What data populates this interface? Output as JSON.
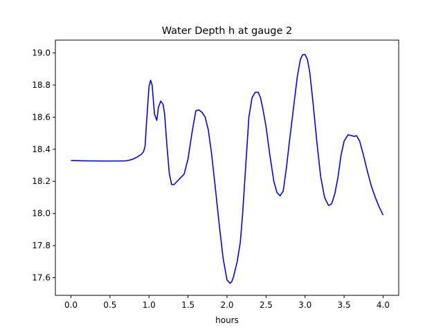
{
  "chart_data": {
    "type": "line",
    "title": "Water Depth h at gauge 2",
    "xlabel": "hours",
    "ylabel": "",
    "xlim": [
      -0.2,
      4.2
    ],
    "ylim": [
      17.49,
      19.08
    ],
    "xticks": [
      0.0,
      0.5,
      1.0,
      1.5,
      2.0,
      2.5,
      3.0,
      3.5,
      4.0
    ],
    "xtick_labels": [
      "0.0",
      "0.5",
      "1.0",
      "1.5",
      "2.0",
      "2.5",
      "3.0",
      "3.5",
      "4.0"
    ],
    "yticks": [
      17.6,
      17.8,
      18.0,
      18.2,
      18.4,
      18.6,
      18.8,
      19.0
    ],
    "ytick_labels": [
      "17.6",
      "17.8",
      "18.0",
      "18.2",
      "18.4",
      "18.6",
      "18.8",
      "19.0"
    ],
    "grid": false,
    "series": [
      {
        "color": "#0000ff",
        "x": [
          0.0,
          0.2,
          0.4,
          0.6,
          0.7,
          0.75,
          0.8,
          0.85,
          0.9,
          0.93,
          0.95,
          0.97,
          1.0,
          1.02,
          1.04,
          1.07,
          1.1,
          1.12,
          1.15,
          1.18,
          1.2,
          1.23,
          1.26,
          1.29,
          1.32,
          1.36,
          1.4,
          1.45,
          1.5,
          1.55,
          1.6,
          1.64,
          1.68,
          1.72,
          1.76,
          1.8,
          1.85,
          1.9,
          1.95,
          2.0,
          2.04,
          2.06,
          2.08,
          2.1,
          2.13,
          2.17,
          2.2,
          2.24,
          2.28,
          2.32,
          2.36,
          2.4,
          2.43,
          2.46,
          2.5,
          2.55,
          2.6,
          2.64,
          2.68,
          2.72,
          2.76,
          2.8,
          2.85,
          2.9,
          2.94,
          2.97,
          3.0,
          3.03,
          3.06,
          3.1,
          3.15,
          3.2,
          3.25,
          3.3,
          3.34,
          3.38,
          3.42,
          3.46,
          3.5,
          3.55,
          3.6,
          3.63,
          3.66,
          3.7,
          3.75,
          3.8,
          3.85,
          3.9,
          3.95,
          4.0
        ],
        "y": [
          18.33,
          18.328,
          18.327,
          18.327,
          18.328,
          18.332,
          18.34,
          18.352,
          18.368,
          18.385,
          18.42,
          18.58,
          18.79,
          18.83,
          18.8,
          18.62,
          18.58,
          18.66,
          18.7,
          18.68,
          18.62,
          18.42,
          18.25,
          18.18,
          18.18,
          18.2,
          18.22,
          18.245,
          18.34,
          18.5,
          18.64,
          18.645,
          18.63,
          18.6,
          18.52,
          18.38,
          18.16,
          17.93,
          17.72,
          17.585,
          17.565,
          17.575,
          17.6,
          17.64,
          17.7,
          17.82,
          18.0,
          18.3,
          18.6,
          18.72,
          18.755,
          18.755,
          18.72,
          18.65,
          18.54,
          18.36,
          18.2,
          18.13,
          18.11,
          18.14,
          18.28,
          18.45,
          18.65,
          18.85,
          18.96,
          18.99,
          18.99,
          18.96,
          18.88,
          18.7,
          18.45,
          18.23,
          18.1,
          18.05,
          18.06,
          18.12,
          18.22,
          18.36,
          18.45,
          18.49,
          18.485,
          18.48,
          18.485,
          18.45,
          18.36,
          18.26,
          18.17,
          18.1,
          18.04,
          17.99
        ]
      }
    ]
  }
}
